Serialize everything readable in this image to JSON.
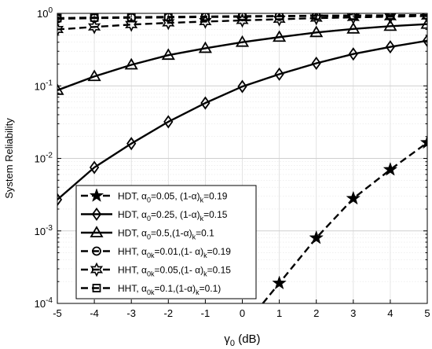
{
  "chart_data": {
    "type": "line",
    "xlabel_main": "γ",
    "xlabel_sub": "0",
    "xlabel_unit": " (dB)",
    "ylabel": "System Reliability",
    "x": [
      -5,
      -4,
      -3,
      -2,
      -1,
      0,
      1,
      2,
      3,
      4,
      5
    ],
    "x_ticks": [
      "-5",
      "-4",
      "-3",
      "-2",
      "-1",
      "0",
      "1",
      "2",
      "3",
      "4",
      "5"
    ],
    "y_ticks": [
      {
        "base": "10",
        "exp": "0"
      },
      {
        "base": "10",
        "exp": "-1"
      },
      {
        "base": "10",
        "exp": "-2"
      },
      {
        "base": "10",
        "exp": "-3"
      },
      {
        "base": "10",
        "exp": "-4"
      }
    ],
    "xlim": [
      -5,
      5
    ],
    "ylim": [
      0.0001,
      1
    ],
    "yscale": "log",
    "grid": true,
    "legend_position": "bottom-left",
    "series": [
      {
        "legend": [
          {
            "t": "HDT, α"
          },
          {
            "t": "0",
            "sub": true
          },
          {
            "t": "=0.05, (1-α)"
          },
          {
            "t": "k",
            "sub": true
          },
          {
            "t": "=0.19"
          }
        ],
        "style": "dashed",
        "marker": "star-filled",
        "x": [
          1,
          2,
          3,
          4,
          5
        ],
        "values": [
          0.00019,
          0.0008,
          0.0028,
          0.007,
          0.0165
        ]
      },
      {
        "legend": [
          {
            "t": "HDT, α"
          },
          {
            "t": "0",
            "sub": true
          },
          {
            "t": "=0.25, (1-α)"
          },
          {
            "t": "k",
            "sub": true
          },
          {
            "t": "=0.15"
          }
        ],
        "style": "solid",
        "marker": "diamond",
        "x": [
          -5,
          -4,
          -3,
          -2,
          -1,
          0,
          1,
          2,
          3,
          4,
          5
        ],
        "values": [
          0.0027,
          0.0075,
          0.016,
          0.032,
          0.058,
          0.098,
          0.145,
          0.205,
          0.275,
          0.345,
          0.42
        ]
      },
      {
        "legend": [
          {
            "t": "HDT, α"
          },
          {
            "t": "0",
            "sub": true
          },
          {
            "t": "=0.5,(1-α)"
          },
          {
            "t": "k",
            "sub": true
          },
          {
            "t": "=0.1"
          }
        ],
        "style": "solid",
        "marker": "triangle",
        "x": [
          -5,
          -4,
          -3,
          -2,
          -1,
          0,
          1,
          2,
          3,
          4,
          5
        ],
        "values": [
          0.087,
          0.135,
          0.195,
          0.265,
          0.33,
          0.4,
          0.47,
          0.545,
          0.61,
          0.665,
          0.71
        ]
      },
      {
        "legend": [
          {
            "t": "HHT, α"
          },
          {
            "t": "0k",
            "sub": true
          },
          {
            "t": "=0.01,(1- α)"
          },
          {
            "t": "k",
            "sub": true
          },
          {
            "t": "=0.19"
          }
        ],
        "style": "dashed",
        "marker": "circle",
        "x": [
          -5,
          -4,
          -3,
          -2,
          -1,
          0,
          1,
          2,
          3,
          4,
          5
        ],
        "values": [
          0.84,
          0.86,
          0.87,
          0.88,
          0.89,
          0.9,
          0.91,
          0.92,
          0.925,
          0.93,
          0.935
        ]
      },
      {
        "legend": [
          {
            "t": "HHT, α"
          },
          {
            "t": "0k",
            "sub": true
          },
          {
            "t": "=0.05,(1- α)"
          },
          {
            "t": "k",
            "sub": true
          },
          {
            "t": "=0.15"
          }
        ],
        "style": "dashed",
        "marker": "hexagram",
        "x": [
          -5,
          -4,
          -3,
          -2,
          -1,
          0,
          1,
          2,
          3,
          4,
          5
        ],
        "values": [
          0.6,
          0.65,
          0.7,
          0.74,
          0.77,
          0.8,
          0.83,
          0.86,
          0.88,
          0.9,
          0.92
        ]
      },
      {
        "legend": [
          {
            "t": "HHT, α"
          },
          {
            "t": "0k",
            "sub": true
          },
          {
            "t": "=0.1,(1-α)"
          },
          {
            "t": "k",
            "sub": true
          },
          {
            "t": "=0.1)"
          }
        ],
        "style": "dashed",
        "marker": "square",
        "x": [
          -5,
          -4,
          -3,
          -2,
          -1,
          0,
          1,
          2,
          3,
          4,
          5
        ],
        "values": [
          0.86,
          0.875,
          0.885,
          0.895,
          0.905,
          0.915,
          0.92,
          0.93,
          0.935,
          0.94,
          0.95
        ]
      }
    ]
  }
}
